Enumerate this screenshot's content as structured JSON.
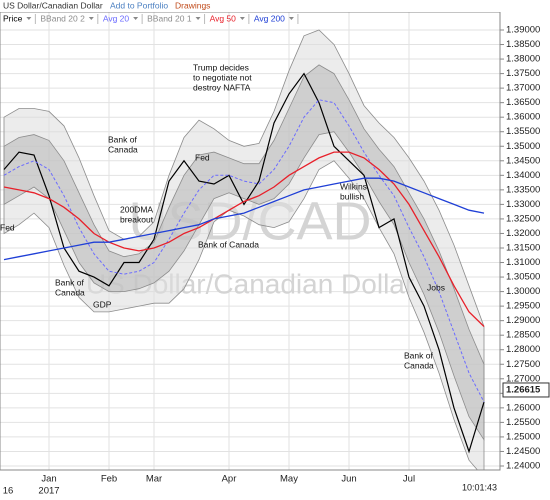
{
  "header": {
    "title": "US Dollar/Canadian Dollar",
    "links": [
      "Add to Portfolio",
      "Drawings"
    ]
  },
  "chart_data": {
    "type": "line",
    "categories": [
      null,
      null,
      null,
      "Jan",
      null,
      null,
      null,
      "Feb",
      null,
      null,
      "Mar",
      null,
      null,
      null,
      null,
      "Apr",
      null,
      null,
      null,
      "May",
      null,
      null,
      null,
      "Jun",
      null,
      null,
      null,
      "Jul",
      null,
      null,
      null,
      null,
      null
    ],
    "x_sublabels": [
      "16",
      null,
      null,
      "2017",
      null,
      null,
      null,
      null,
      null,
      null,
      null,
      null,
      null,
      null,
      null,
      null,
      null,
      null,
      null,
      null,
      null,
      null,
      null,
      null,
      null,
      null,
      null,
      null,
      null,
      null,
      null,
      null,
      null
    ],
    "series": [
      {
        "name": "Price",
        "color": "#000000",
        "values": [
          1.342,
          1.348,
          1.347,
          1.333,
          1.315,
          1.307,
          1.305,
          1.302,
          1.31,
          1.31,
          1.318,
          1.338,
          1.345,
          1.338,
          1.337,
          1.34,
          1.33,
          1.338,
          1.358,
          1.368,
          1.375,
          1.365,
          1.35,
          1.345,
          1.34,
          1.322,
          1.325,
          1.305,
          1.295,
          1.28,
          1.26,
          1.245,
          1.262
        ]
      },
      {
        "name": "BBand 20 2",
        "color": "#8c8c8c",
        "upper": [
          1.36,
          1.363,
          1.363,
          1.362,
          1.357,
          1.346,
          1.333,
          1.321,
          1.318,
          1.319,
          1.324,
          1.34,
          1.353,
          1.359,
          1.356,
          1.352,
          1.35,
          1.351,
          1.362,
          1.376,
          1.388,
          1.39,
          1.385,
          1.375,
          1.364,
          1.358,
          1.353,
          1.346,
          1.338,
          1.328,
          1.316,
          1.302,
          1.288
        ],
        "lower": [
          1.32,
          1.323,
          1.327,
          1.322,
          1.309,
          1.298,
          1.293,
          1.293,
          1.294,
          1.295,
          1.296,
          1.296,
          1.301,
          1.311,
          1.324,
          1.328,
          1.326,
          1.323,
          1.322,
          1.324,
          1.332,
          1.342,
          1.345,
          1.339,
          1.332,
          1.322,
          1.313,
          1.298,
          1.286,
          1.272,
          1.256,
          1.242,
          1.236
        ]
      },
      {
        "name": "Avg 20",
        "color": "#6b6bff",
        "values": [
          1.34,
          1.343,
          1.345,
          1.342,
          1.333,
          1.322,
          1.313,
          1.307,
          1.306,
          1.307,
          1.31,
          1.318,
          1.327,
          1.335,
          1.34,
          1.34,
          1.338,
          1.337,
          1.342,
          1.35,
          1.36,
          1.366,
          1.365,
          1.357,
          1.348,
          1.34,
          1.333,
          1.322,
          1.312,
          1.3,
          1.286,
          1.272,
          1.262
        ]
      },
      {
        "name": "BBand 20 1",
        "color": "#8c8c8c",
        "upper": [
          1.35,
          1.353,
          1.354,
          1.352,
          1.345,
          1.334,
          1.323,
          1.314,
          1.312,
          1.313,
          1.317,
          1.329,
          1.34,
          1.347,
          1.348,
          1.346,
          1.344,
          1.344,
          1.352,
          1.363,
          1.374,
          1.378,
          1.375,
          1.366,
          1.356,
          1.349,
          1.343,
          1.334,
          1.325,
          1.314,
          1.301,
          1.287,
          1.275
        ],
        "lower": [
          1.33,
          1.333,
          1.336,
          1.332,
          1.321,
          1.31,
          1.303,
          1.3,
          1.3,
          1.301,
          1.303,
          1.307,
          1.314,
          1.323,
          1.332,
          1.334,
          1.332,
          1.33,
          1.332,
          1.337,
          1.346,
          1.354,
          1.355,
          1.348,
          1.34,
          1.331,
          1.323,
          1.31,
          1.299,
          1.286,
          1.271,
          1.257,
          1.249
        ]
      },
      {
        "name": "Avg 50",
        "color": "#e8202a",
        "values": [
          1.336,
          1.335,
          1.334,
          1.332,
          1.329,
          1.325,
          1.32,
          1.317,
          1.315,
          1.314,
          1.315,
          1.317,
          1.32,
          1.322,
          1.325,
          1.328,
          1.331,
          1.333,
          1.336,
          1.34,
          1.343,
          1.346,
          1.348,
          1.348,
          1.346,
          1.342,
          1.337,
          1.33,
          1.321,
          1.312,
          1.302,
          1.293,
          1.288
        ]
      },
      {
        "name": "Avg 200",
        "color": "#1f3fd6",
        "values": [
          1.311,
          1.312,
          1.313,
          1.314,
          1.315,
          1.316,
          1.317,
          1.317,
          1.318,
          1.319,
          1.32,
          1.321,
          1.322,
          1.323,
          1.325,
          1.326,
          1.327,
          1.329,
          1.331,
          1.333,
          1.335,
          1.336,
          1.337,
          1.338,
          1.339,
          1.339,
          1.338,
          1.336,
          1.334,
          1.332,
          1.33,
          1.328,
          1.327
        ]
      }
    ],
    "last_price": 1.26615,
    "time": "10:01:43",
    "watermark": {
      "symbol": "USD/CAD",
      "name": "US Dollar/Canadian Dollar"
    },
    "annotations": [
      [
        "Fed"
      ],
      [
        "Bank of",
        "Canada"
      ],
      [
        "GDP"
      ],
      [
        "200DMA",
        "breakout"
      ],
      [
        "Bank of",
        "Canada"
      ],
      [
        "Fed"
      ],
      [
        "Bank of Canada"
      ],
      [
        "Trump decides",
        "to negotiate not",
        "destroy NAFTA"
      ],
      [
        "Wilkins",
        "bullish"
      ],
      [
        "Jobs"
      ],
      [
        "Bank of",
        "Canada"
      ]
    ],
    "ylim": [
      1.23862,
      1.39619
    ],
    "yticks": [
      {
        "value": 1.24,
        "label": "1.24000"
      },
      {
        "value": 1.245,
        "label": "1.24500"
      },
      {
        "value": 1.25,
        "label": "1.25000"
      },
      {
        "value": 1.255,
        "label": "1.25500"
      },
      {
        "value": 1.26,
        "label": "1.26000"
      },
      {
        "value": 1.265,
        "label": "1.26500"
      },
      {
        "value": 1.27,
        "label": "1.27000"
      },
      {
        "value": 1.275,
        "label": "1.27500"
      },
      {
        "value": 1.28,
        "label": "1.28000"
      },
      {
        "value": 1.285,
        "label": "1.28500"
      },
      {
        "value": 1.29,
        "label": "1.29000"
      },
      {
        "value": 1.295,
        "label": "1.29500"
      },
      {
        "value": 1.3,
        "label": "1.30000"
      },
      {
        "value": 1.305,
        "label": "1.30500"
      },
      {
        "value": 1.31,
        "label": "1.31000"
      },
      {
        "value": 1.315,
        "label": "1.31500"
      },
      {
        "value": 1.32,
        "label": "1.32000"
      },
      {
        "value": 1.325,
        "label": "1.32500"
      },
      {
        "value": 1.33,
        "label": "1.33000"
      },
      {
        "value": 1.335,
        "label": "1.33500"
      },
      {
        "value": 1.34,
        "label": "1.34000"
      },
      {
        "value": 1.345,
        "label": "1.34500"
      },
      {
        "value": 1.35,
        "label": "1.35000"
      },
      {
        "value": 1.355,
        "label": "1.35500"
      },
      {
        "value": 1.36,
        "label": "1.36000"
      },
      {
        "value": 1.365,
        "label": "1.36500"
      },
      {
        "value": 1.37,
        "label": "1.37000"
      },
      {
        "value": 1.375,
        "label": "1.37500"
      },
      {
        "value": 1.38,
        "label": "1.38000"
      },
      {
        "value": 1.385,
        "label": "1.38500"
      },
      {
        "value": 1.39,
        "label": "1.39000"
      }
    ],
    "grid": true
  }
}
